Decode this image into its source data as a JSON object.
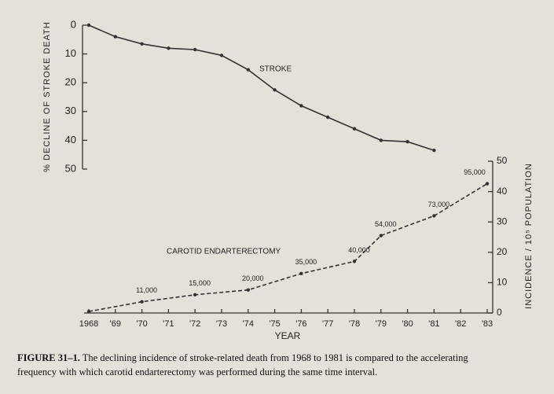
{
  "chart_data": {
    "type": "line",
    "series": [
      {
        "name": "STROKE",
        "color": "#333333",
        "dash": false,
        "x": [
          1968,
          1969,
          1970,
          1971,
          1972,
          1973,
          1974,
          1975,
          1976,
          1977,
          1978,
          1979,
          1980,
          1981
        ],
        "values": [
          0,
          4,
          6.5,
          8,
          8.5,
          10.5,
          15.5,
          22.5,
          28,
          32,
          36,
          40,
          40.5,
          43.5
        ]
      },
      {
        "name": "CAROTID ENDARTERECTOMY",
        "color": "#333333",
        "dash": true,
        "axis": "y2",
        "x": [
          1968,
          1970,
          1972,
          1974,
          1976,
          1978,
          1979,
          1981,
          1983
        ],
        "values": [
          0.5,
          3.7,
          6,
          7.6,
          13,
          17,
          25.5,
          32,
          42.6
        ],
        "point_labels": [
          null,
          "11,000",
          "15,000",
          "20,000",
          "35,000",
          "40,000",
          "54,000",
          "73,000",
          "95,000"
        ]
      }
    ],
    "ylabel": "% DECLINE OF STROKE DEATH",
    "y2label": "INCIDENCE / 10⁵ POPULATION",
    "xlabel": "YEAR",
    "ylim": [
      0,
      50
    ],
    "y_inverted": true,
    "yticks": [
      0,
      10,
      20,
      30,
      40,
      50
    ],
    "y2lim": [
      0,
      50
    ],
    "y2ticks": [
      0,
      10,
      20,
      30,
      40,
      50
    ],
    "xlim": [
      1968,
      1983
    ],
    "xticks": [
      1968,
      {
        "value": 1969,
        "label": "'69"
      },
      {
        "value": 1970,
        "label": "'70"
      },
      {
        "value": 1971,
        "label": "'71"
      },
      {
        "value": 1972,
        "label": "'72"
      },
      {
        "value": 1973,
        "label": "'73"
      },
      {
        "value": 1974,
        "label": "'74"
      },
      {
        "value": 1975,
        "label": "'75"
      },
      {
        "value": 1976,
        "label": "'76"
      },
      {
        "value": 1977,
        "label": "'77"
      },
      {
        "value": 1978,
        "label": "'78"
      },
      {
        "value": 1979,
        "label": "'79"
      },
      {
        "value": 1980,
        "label": "'80"
      },
      {
        "value": 1981,
        "label": "'81"
      },
      {
        "value": 1982,
        "label": "'82"
      },
      {
        "value": 1983,
        "label": "'83"
      }
    ]
  },
  "figure": {
    "label": "FIGURE 31–1.",
    "caption_lines": [
      "The declining incidence of stroke-related death from 1968 to 1981 is compared to the accelerating",
      "frequency with which carotid endarterectomy was performed during the same time interval."
    ]
  }
}
